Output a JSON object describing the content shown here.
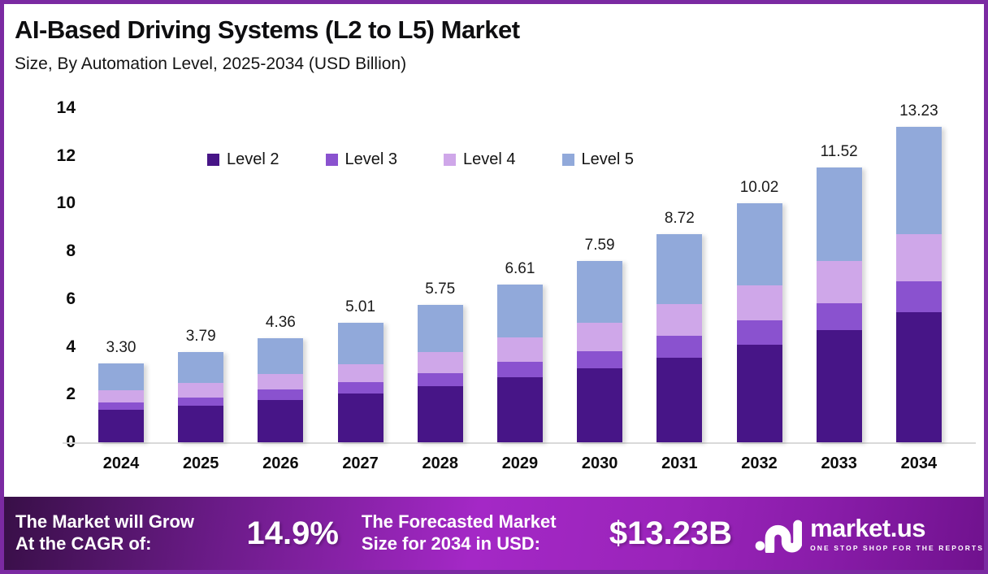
{
  "header": {
    "title": "AI-Based Driving Systems (L2 to L5) Market",
    "subtitle": "Size, By Automation Level, 2025-2034 (USD Billion)"
  },
  "chart_data": {
    "type": "bar",
    "stacked": true,
    "title": "AI-Based Driving Systems (L2 to L5) Market",
    "subtitle": "Size, By Automation Level, 2025-2034 (USD Billion)",
    "categories": [
      "2024",
      "2025",
      "2026",
      "2027",
      "2028",
      "2029",
      "2030",
      "2031",
      "2032",
      "2033",
      "2034"
    ],
    "series": [
      {
        "name": "Level 2",
        "color": "#471587",
        "values": [
          1.35,
          1.54,
          1.79,
          2.06,
          2.36,
          2.71,
          3.09,
          3.56,
          4.09,
          4.7,
          5.44
        ]
      },
      {
        "name": "Level 3",
        "color": "#8a52cf",
        "values": [
          0.32,
          0.34,
          0.42,
          0.45,
          0.55,
          0.65,
          0.73,
          0.89,
          1.01,
          1.13,
          1.3
        ]
      },
      {
        "name": "Level 4",
        "color": "#cfa7e9",
        "values": [
          0.5,
          0.62,
          0.65,
          0.77,
          0.88,
          1.02,
          1.19,
          1.33,
          1.49,
          1.75,
          1.98
        ]
      },
      {
        "name": "Level 5",
        "color": "#91a9da",
        "values": [
          1.13,
          1.29,
          1.5,
          1.73,
          1.96,
          2.23,
          2.58,
          2.94,
          3.43,
          3.94,
          4.51
        ]
      }
    ],
    "totals": [
      "3.30",
      "3.79",
      "4.36",
      "5.01",
      "5.75",
      "6.61",
      "7.59",
      "8.72",
      "10.02",
      "11.52",
      "13.23"
    ],
    "ylabel": "",
    "xlabel": "",
    "ylim": [
      0,
      14
    ],
    "yticks": [
      0,
      2,
      4,
      6,
      8,
      10,
      12,
      14
    ],
    "grid": false,
    "legend_position": "top"
  },
  "footer": {
    "cagr_label_line1": "The Market will Grow",
    "cagr_label_line2": "At the CAGR of:",
    "cagr_value": "14.9%",
    "forecast_label_line1": "The Forecasted Market",
    "forecast_label_line2": "Size for 2034 in USD:",
    "forecast_value": "$13.23B",
    "brand_name": "market.us",
    "brand_tagline": "ONE STOP SHOP FOR THE REPORTS"
  },
  "colors": {
    "border": "#7b2aa2",
    "axis_line": "#d9d9d9",
    "banner_dark": "#380f47",
    "banner_bright": "#a428c6"
  }
}
